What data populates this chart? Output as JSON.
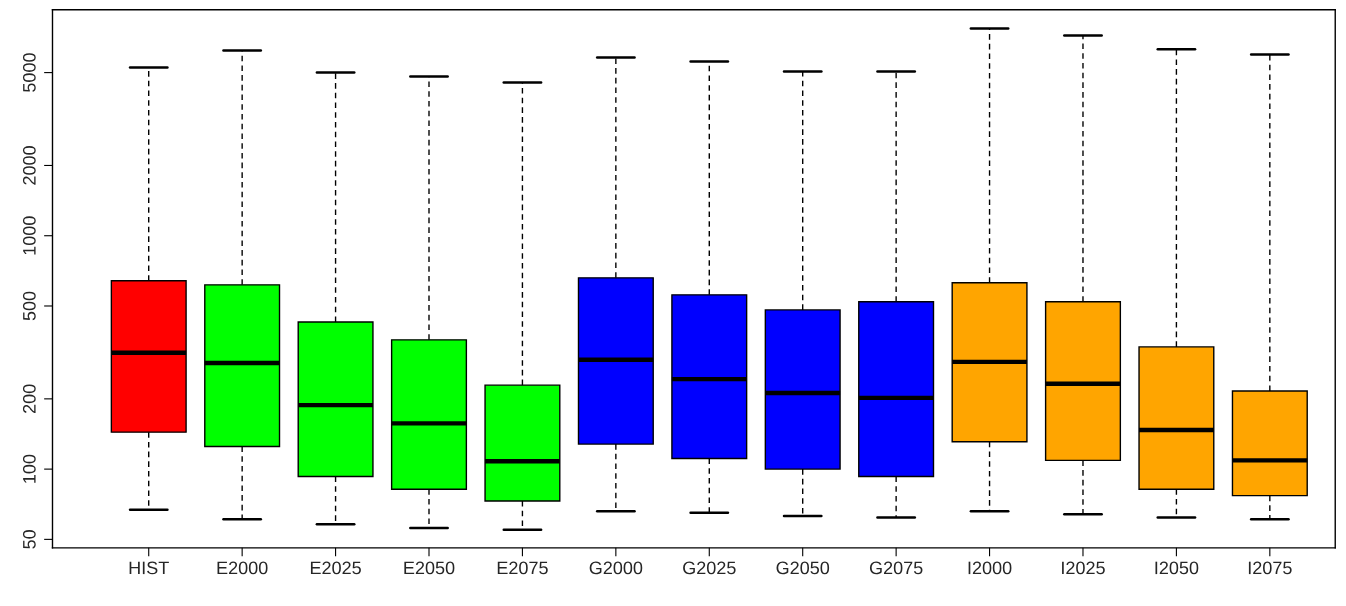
{
  "chart_data": {
    "type": "box",
    "log": true,
    "grid": false,
    "categories": [
      "HIST",
      "E2000",
      "E2025",
      "E2050",
      "E2075",
      "G2000",
      "G2025",
      "G2050",
      "G2075",
      "I2000",
      "I2025",
      "I2050",
      "I2075"
    ],
    "colors": [
      "#ff0000",
      "#00ff00",
      "#00ff00",
      "#00ff00",
      "#00ff00",
      "#0000ff",
      "#0000ff",
      "#0000ff",
      "#0000ff",
      "#ffa500",
      "#ffa500",
      "#ffa500",
      "#ffa500"
    ],
    "boxes": [
      {
        "low": 67,
        "q1": 144,
        "median": 315,
        "q3": 641,
        "high": 5260
      },
      {
        "low": 61,
        "q1": 125,
        "median": 285,
        "q3": 616,
        "high": 6220
      },
      {
        "low": 58,
        "q1": 93,
        "median": 188,
        "q3": 427,
        "high": 5010
      },
      {
        "low": 56,
        "q1": 82,
        "median": 157,
        "q3": 358,
        "high": 4810
      },
      {
        "low": 55,
        "q1": 73,
        "median": 108,
        "q3": 229,
        "high": 4540
      },
      {
        "low": 66,
        "q1": 128,
        "median": 294,
        "q3": 660,
        "high": 5810
      },
      {
        "low": 65,
        "q1": 111,
        "median": 243,
        "q3": 558,
        "high": 5580
      },
      {
        "low": 63,
        "q1": 100,
        "median": 212,
        "q3": 481,
        "high": 5060
      },
      {
        "low": 62,
        "q1": 93,
        "median": 202,
        "q3": 521,
        "high": 5060
      },
      {
        "low": 66,
        "q1": 131,
        "median": 288,
        "q3": 629,
        "high": 7730
      },
      {
        "low": 64,
        "q1": 109,
        "median": 232,
        "q3": 521,
        "high": 7210
      },
      {
        "low": 62,
        "q1": 82,
        "median": 147,
        "q3": 334,
        "high": 6290
      },
      {
        "low": 61,
        "q1": 77,
        "median": 109,
        "q3": 216,
        "high": 5980
      }
    ],
    "ylim": [
      46,
      9300
    ],
    "yticks": [
      50,
      100,
      200,
      500,
      1000,
      2000,
      5000
    ]
  }
}
